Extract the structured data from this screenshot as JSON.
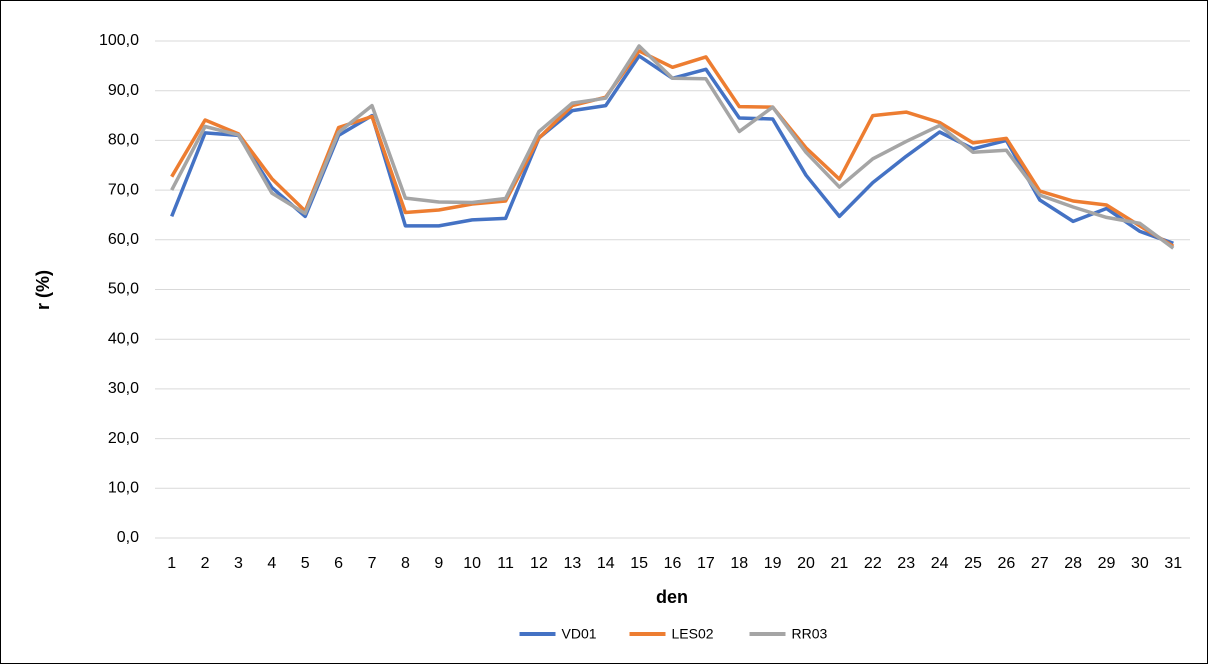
{
  "chart_data": {
    "type": "line",
    "x_label": "den",
    "y_label": "r (%)",
    "categories": [
      "1",
      "2",
      "3",
      "4",
      "5",
      "6",
      "7",
      "8",
      "9",
      "10",
      "11",
      "12",
      "13",
      "14",
      "15",
      "16",
      "17",
      "18",
      "19",
      "20",
      "21",
      "22",
      "23",
      "24",
      "25",
      "26",
      "27",
      "28",
      "29",
      "30",
      "31"
    ],
    "series": [
      {
        "name": "VD01",
        "color": "#4472c4",
        "values": [
          64.7,
          81.5,
          81,
          70.5,
          64.7,
          81,
          85,
          62.8,
          62.8,
          64,
          64.3,
          80.5,
          86,
          87,
          97,
          92.5,
          94.3,
          84.5,
          84.3,
          73,
          64.7,
          71.5,
          76.8,
          81.7,
          78.3,
          80,
          68,
          63.7,
          66.3,
          61.7,
          59.3
        ]
      },
      {
        "name": "LES02",
        "color": "#ed7d31",
        "values": [
          72.7,
          84.1,
          81.3,
          72.3,
          65.8,
          82.6,
          84.8,
          65.5,
          66,
          67.2,
          67.8,
          80.5,
          87,
          88.7,
          98,
          94.7,
          96.8,
          86.8,
          86.7,
          78.5,
          72.2,
          85,
          85.7,
          83.6,
          79.5,
          80.4,
          69.8,
          67.8,
          67,
          62.8,
          58.7
        ]
      },
      {
        "name": "RR03",
        "color": "#a5a5a5",
        "values": [
          70,
          82.8,
          81.1,
          69.4,
          65.3,
          81.6,
          87,
          68.4,
          67.6,
          67.5,
          68.3,
          81.8,
          87.5,
          88.5,
          99,
          92.5,
          92.4,
          81.8,
          86.7,
          77.6,
          70.6,
          76.3,
          79.8,
          83,
          77.6,
          78,
          69,
          66.6,
          64.5,
          63.3,
          58.3
        ]
      }
    ],
    "ylim": [
      0,
      100
    ],
    "yticks": [
      {
        "value": 0,
        "label": "0,0"
      },
      {
        "value": 10,
        "label": "10,0"
      },
      {
        "value": 20,
        "label": "20,0"
      },
      {
        "value": 30,
        "label": "30,0"
      },
      {
        "value": 40,
        "label": "40,0"
      },
      {
        "value": 50,
        "label": "50,0"
      },
      {
        "value": 60,
        "label": "60,0"
      },
      {
        "value": 70,
        "label": "70,0"
      },
      {
        "value": 80,
        "label": "80,0"
      },
      {
        "value": 90,
        "label": "90,0"
      },
      {
        "value": 100,
        "label": "100,0"
      }
    ],
    "grid": true,
    "legend": "bottom"
  }
}
